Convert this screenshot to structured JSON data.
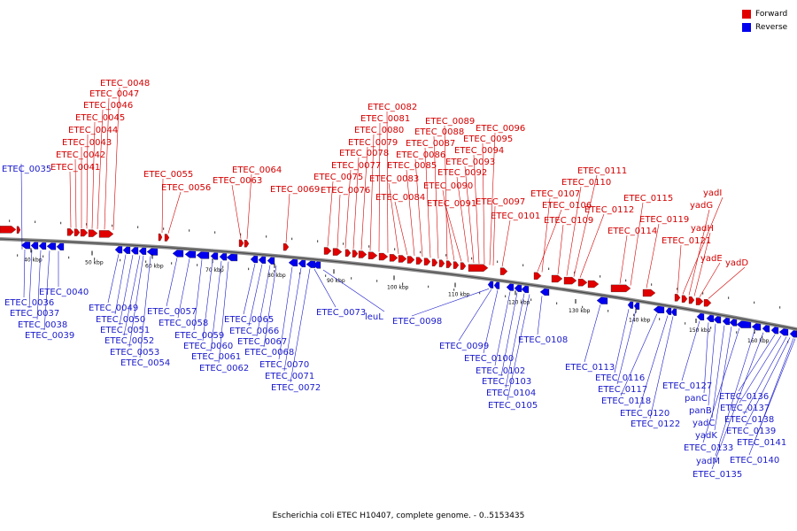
{
  "legend": {
    "forward": {
      "label": "Forward",
      "color": "#e00000"
    },
    "reverse": {
      "label": "Reverse",
      "color": "#0000ee"
    }
  },
  "caption": "Escherichia coli ETEC H10407, complete genome. - 0..5153435",
  "ticks": [
    "40 kbp",
    "50 kbp",
    "60 kbp",
    "70 kbp",
    "80 kbp",
    "90 kbp",
    "100 kbp",
    "110 kbp",
    "120 kbp",
    "130 kbp",
    "140 kbp",
    "150 kbp",
    "160 kbp"
  ],
  "forward_labels": [
    "ETEC_0041",
    "ETEC_0042",
    "ETEC_0043",
    "ETEC_0044",
    "ETEC_0045",
    "ETEC_0046",
    "ETEC_0047",
    "ETEC_0048",
    "ETEC_0055",
    "ETEC_0056",
    "ETEC_0063",
    "ETEC_0064",
    "ETEC_0069",
    "ETEC_0075",
    "ETEC_0076",
    "ETEC_0077",
    "ETEC_0078",
    "ETEC_0079",
    "ETEC_0080",
    "ETEC_0081",
    "ETEC_0082",
    "ETEC_0083",
    "ETEC_0084",
    "ETEC_0085",
    "ETEC_0086",
    "ETEC_0087",
    "ETEC_0088",
    "ETEC_0089",
    "ETEC_0090",
    "ETEC_0091",
    "ETEC_0092",
    "ETEC_0093",
    "ETEC_0094",
    "ETEC_0095",
    "ETEC_0096",
    "ETEC_0097",
    "ETEC_0101",
    "ETEC_0106",
    "ETEC_0107",
    "ETEC_0109",
    "ETEC_0110",
    "ETEC_0111",
    "ETEC_0112",
    "ETEC_0114",
    "ETEC_0115",
    "ETEC_0119",
    "ETEC_0121",
    "yadI",
    "yadG",
    "yadH",
    "yadE",
    "yadD"
  ],
  "reverse_labels": [
    "ETEC_0035",
    "ETEC_0036",
    "ETEC_0037",
    "ETEC_0038",
    "ETEC_0039",
    "ETEC_0040",
    "ETEC_0049",
    "ETEC_0050",
    "ETEC_0051",
    "ETEC_0052",
    "ETEC_0053",
    "ETEC_0054",
    "ETEC_0057",
    "ETEC_0058",
    "ETEC_0059",
    "ETEC_0060",
    "ETEC_0061",
    "ETEC_0062",
    "ETEC_0065",
    "ETEC_0066",
    "ETEC_0067",
    "ETEC_0068",
    "ETEC_0070",
    "ETEC_0071",
    "ETEC_0072",
    "ETEC_0073",
    "leuL",
    "ETEC_0098",
    "ETEC_0099",
    "ETEC_0100",
    "ETEC_0102",
    "ETEC_0103",
    "ETEC_0104",
    "ETEC_0105",
    "ETEC_0108",
    "ETEC_0113",
    "ETEC_0116",
    "ETEC_0117",
    "ETEC_0118",
    "ETEC_0120",
    "ETEC_0122",
    "ETEC_0127",
    "panC",
    "panB",
    "yadC",
    "yadK",
    "ETEC_0133",
    "yadM",
    "ETEC_0135",
    "ETEC_0136",
    "ETEC_0137",
    "ETEC_0138",
    "ETEC_0139",
    "ETEC_0141",
    "ETEC_0140"
  ]
}
